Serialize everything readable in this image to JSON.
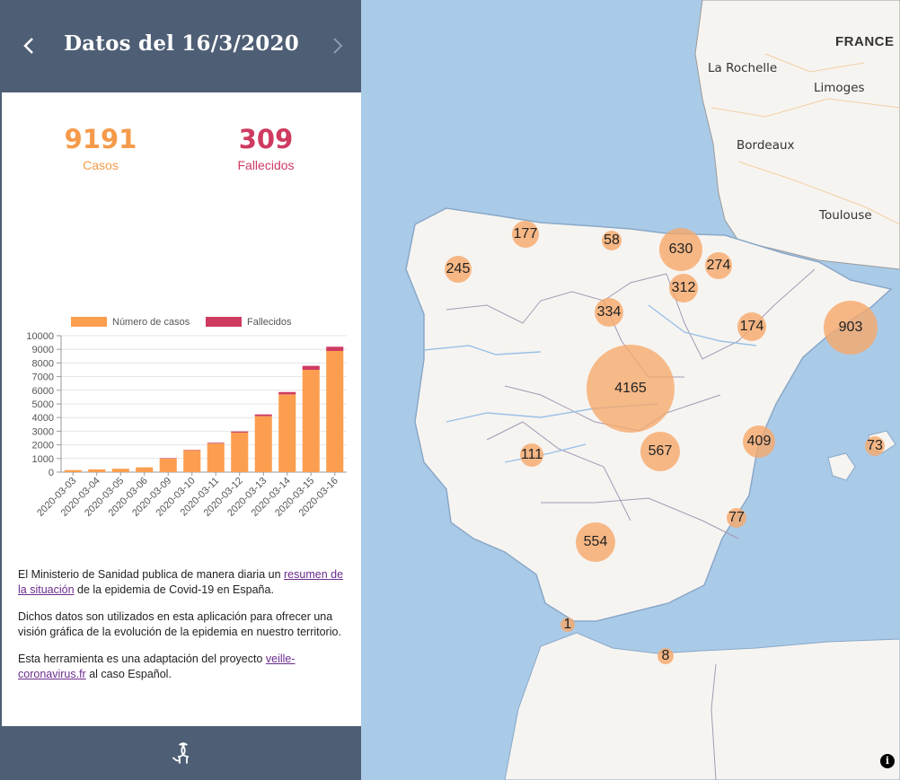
{
  "header": {
    "title": "Datos del 16/3/2020"
  },
  "stats": {
    "cases_value": "9191",
    "cases_label": "Casos",
    "deaths_value": "309",
    "deaths_label": "Fallecidos"
  },
  "chart_data": {
    "type": "bar",
    "stacked": true,
    "legend": [
      "Número de casos",
      "Fallecidos"
    ],
    "categories": [
      "2020-03-03",
      "2020-03-04",
      "2020-03-05",
      "2020-03-06",
      "2020-03-09",
      "2020-03-10",
      "2020-03-11",
      "2020-03-12",
      "2020-03-13",
      "2020-03-14",
      "2020-03-15",
      "2020-03-16"
    ],
    "series": [
      {
        "name": "Número de casos",
        "color": "#fb9e4f",
        "values": [
          150,
          200,
          250,
          350,
          1000,
          1600,
          2100,
          2900,
          4100,
          5700,
          7500,
          8882
        ]
      },
      {
        "name": "Fallecidos",
        "color": "#cf3a61",
        "values": [
          0,
          0,
          0,
          0,
          20,
          30,
          50,
          80,
          130,
          170,
          290,
          309
        ]
      }
    ],
    "y_ticks": [
      "0",
      "1000",
      "2000",
      "3000",
      "4000",
      "5000",
      "6000",
      "7000",
      "8000",
      "9000",
      "10000"
    ],
    "ylim": [
      0,
      10000
    ],
    "legend_position": "top"
  },
  "text": {
    "p1_a": "El Ministerio de Sanidad publica de manera diaria un ",
    "p1_link": "resumen de la situación",
    "p1_b": " de la epidemia de Covid-19 en España.",
    "p2": "Dichos datos son utilizados en esta aplicación para ofrecer una visión gráfica de la evolución de la epidemia en nuestro territorio.",
    "p3_a": "Esta herramienta es una adaptación del proyecto ",
    "p3_link": "veille-coronavirus.fr",
    "p3_b": " al caso Español."
  },
  "map": {
    "country_label": "FRANCE",
    "cities": [
      "La Rochelle",
      "Limoges",
      "Bordeaux",
      "Toulouse"
    ],
    "bubbles": [
      "177",
      "58",
      "630",
      "245",
      "274",
      "312",
      "334",
      "174",
      "903",
      "4165",
      "409",
      "73",
      "111",
      "567",
      "77",
      "554",
      "1",
      "8"
    ],
    "info_label": "i"
  },
  "colors": {
    "header_bg": "#4e5e75",
    "cases": "#f59a4a",
    "deaths": "#cf3a61",
    "sea": "#a9cbe8",
    "land": "#f6f4f1"
  }
}
